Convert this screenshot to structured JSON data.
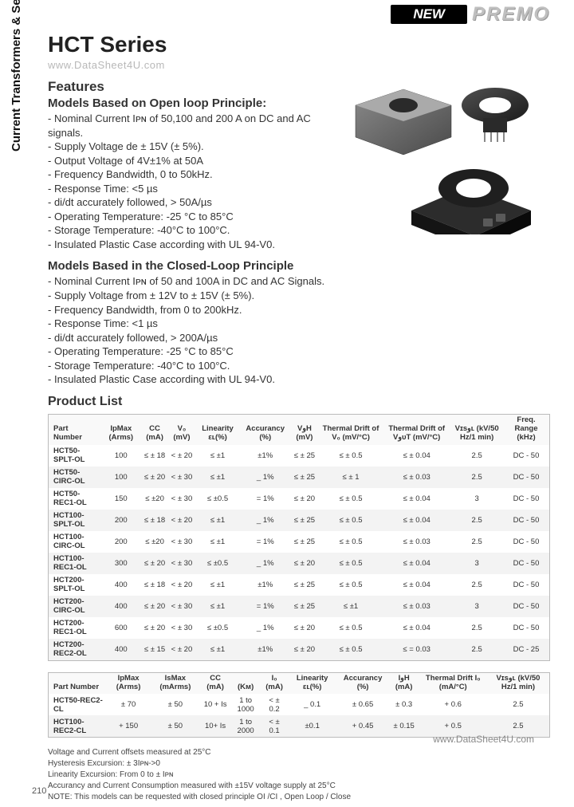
{
  "page": {
    "new_badge": "NEW",
    "brand": "PREMO",
    "series_title": "HCT Series",
    "watermark_top": "www.DataSheet4U.com",
    "vertical_label": "Current Transformers & Sensors",
    "page_number": "210",
    "watermark_bottom": "www.DataSheet4U.com"
  },
  "features": {
    "heading": "Features",
    "open_loop_heading": "Models Based on Open loop Principle:",
    "open_loop": [
      "Nominal Current Iᴘɴ of 50,100 and 200 A on DC and AC signals.",
      "Supply Voltage de ± 15V (± 5%).",
      "Output Voltage of 4V±1% at 50A",
      "Frequency Bandwidth, 0 to 50kHz.",
      "Response Time: <5 µs",
      "di/dt accurately followed, > 50A/µs",
      "Operating Temperature: -25 °C to 85°C",
      "Storage Temperature: -40°C to 100°C.",
      "Insulated Plastic Case according with UL 94-V0."
    ],
    "closed_loop_heading": "Models Based in the Closed-Loop Principle",
    "closed_loop": [
      "Nominal Current Iᴘɴ of 50 and 100A in DC and AC Signals.",
      "Supply Voltage from ± 12V to ± 15V (± 5%).",
      "Frequency Bandwidth, from 0 to 200kHz.",
      "Response Time: <1 µs",
      "di/dt accurately followed, > 200A/µs",
      "Operating Temperature: -25 °C to 85°C",
      "Storage Temperature: -40°C to 100°C.",
      "Insulated Plastic Case according with UL 94-V0."
    ],
    "product_list_heading": "Product List"
  },
  "table1": {
    "columns": [
      "Part Number",
      "IpMax (Arms)",
      "CC (mA)",
      "V₀ (mV)",
      "Linearity εʟ(%)",
      "Accurancy (%)",
      "VوH (mV)",
      "Thermal Drift of V₀ (mV/°C)",
      "Thermal Drift of VوᴜT (mV/°C)",
      "Vɪsوʟ (kV/50 Hz/1 min)",
      "Freq. Range (kHz)"
    ],
    "rows": [
      [
        "HCT50-SPLT-OL",
        "100",
        "≤ ± 18",
        "< ± 20",
        "≤ ±1",
        "±1%",
        "≤ ± 25",
        "≤ ± 0.5",
        "≤ ± 0.04",
        "2.5",
        "DC - 50"
      ],
      [
        "HCT50-CIRC-OL",
        "100",
        "≤ ± 20",
        "< ± 30",
        "≤ ±1",
        "_ 1%",
        "≤ ± 25",
        "≤ ± 1",
        "≤ ± 0.03",
        "2.5",
        "DC - 50"
      ],
      [
        "HCT50-REC1-OL",
        "150",
        "≤ ±20",
        "< ± 30",
        "≤ ±0.5",
        "= 1%",
        "≤ ± 20",
        "≤ ± 0.5",
        "≤ ± 0.04",
        "3",
        "DC - 50"
      ],
      [
        "HCT100-SPLT-OL",
        "200",
        "≤ ± 18",
        "< ± 20",
        "≤ ±1",
        "_ 1%",
        "≤ ± 25",
        "≤ ± 0.5",
        "≤ ± 0.04",
        "2.5",
        "DC - 50"
      ],
      [
        "HCT100-CIRC-OL",
        "200",
        "≤ ±20",
        "< ± 30",
        "≤ ±1",
        "= 1%",
        "≤ ± 25",
        "≤ ± 0.5",
        "≤ ± 0.03",
        "2.5",
        "DC - 50"
      ],
      [
        "HCT100-REC1-OL",
        "300",
        "≤ ± 20",
        "< ± 30",
        "≤ ±0.5",
        "_ 1%",
        "≤ ± 20",
        "≤ ± 0.5",
        "≤ ± 0.04",
        "3",
        "DC - 50"
      ],
      [
        "HCT200-SPLT-OL",
        "400",
        "≤ ± 18",
        "< ± 20",
        "≤ ±1",
        "±1%",
        "≤ ± 25",
        "≤ ± 0.5",
        "≤ ± 0.04",
        "2.5",
        "DC - 50"
      ],
      [
        "HCT200-CIRC-OL",
        "400",
        "≤ ± 20",
        "< ± 30",
        "≤ ±1",
        "= 1%",
        "≤ ± 25",
        "≤ ±1",
        "≤ ± 0.03",
        "3",
        "DC - 50"
      ],
      [
        "HCT200-REC1-OL",
        "600",
        "≤ ± 20",
        "< ± 30",
        "≤ ±0.5",
        "_ 1%",
        "≤ ± 20",
        "≤ ± 0.5",
        "≤ ± 0.04",
        "2.5",
        "DC - 50"
      ],
      [
        "HCT200-REC2-OL",
        "400",
        "≤ ± 15",
        "< ± 20",
        "≤ ±1",
        "±1%",
        "≤ ± 20",
        "≤ ± 0.5",
        "≤ = 0.03",
        "2.5",
        "DC - 25"
      ]
    ]
  },
  "table2": {
    "columns": [
      "Part Number",
      "IpMax (Arms)",
      "IsMax (mArms)",
      "CC (mA)",
      "(Kᴍ)",
      "I₀ (mA)",
      "Linearity εʟ(%)",
      "Accurancy (%)",
      "IوH (mA)",
      "Thermal Drift I₀ (mA/°C)",
      "Vɪsوʟ (kV/50 Hz/1 min)"
    ],
    "rows": [
      [
        "HCT50-REC2-CL",
        "± 70",
        "± 50",
        "10 + Is",
        "1 to 1000",
        "< ± 0.2",
        "_ 0.1",
        "± 0.65",
        "± 0.3",
        "+ 0.6",
        "2.5"
      ],
      [
        "HCT100-REC2-CL",
        "+ 150",
        "± 50",
        "10+ Is",
        "1 to 2000",
        "< ± 0.1",
        "±0.1",
        "+ 0.45",
        "± 0.15",
        "+ 0.5",
        "2.5"
      ]
    ]
  },
  "footnotes": [
    "Voltage and Current offsets measured at 25°C",
    "Hysteresis Excursion:  ± 3Iᴘɴ->0",
    "Linearity Excursion: From 0 to ± Iᴘɴ",
    "Accurancy and Current Consumption measured with ±15V voltage supply at 25°C",
    "NOTE: This models can be requested with closed principle OI /CI , Open Loop / Close"
  ]
}
